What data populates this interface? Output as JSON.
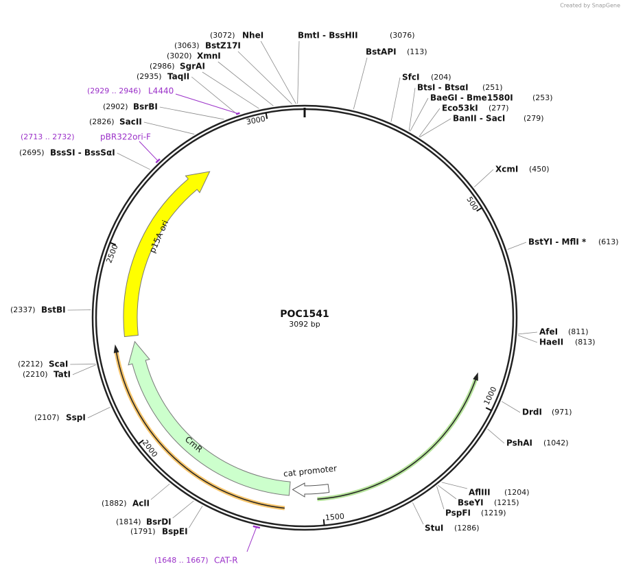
{
  "credit": "Created by SnapGene",
  "plasmid": {
    "name": "POC1541",
    "length": "3092 bp"
  },
  "sites": [
    {
      "name": "NheI",
      "position": "(3072)"
    },
    {
      "name": "BstZ17I",
      "position": "(3063)"
    },
    {
      "name": "XmnI",
      "position": "(3020)"
    },
    {
      "name": "SgrAI",
      "position": "(2986)"
    },
    {
      "name": "TaqII",
      "position": "(2935)"
    },
    {
      "name": "BsrBI",
      "position": "(2902)"
    },
    {
      "name": "SacII",
      "position": "(2826)"
    },
    {
      "name": "BssSI  - BssSαI",
      "position": "(2695)"
    },
    {
      "name": "BstBI",
      "position": "(2337)"
    },
    {
      "name": "ScaI",
      "position": "(2212)"
    },
    {
      "name": "TatI",
      "position": "(2210)"
    },
    {
      "name": "SspI",
      "position": "(2107)"
    },
    {
      "name": "AclI",
      "position": "(1882)"
    },
    {
      "name": "BsrDI",
      "position": "(1814)"
    },
    {
      "name": "BspEI",
      "position": "(1791)"
    },
    {
      "name": "BmtI  - BssHII",
      "position": "(3076)"
    },
    {
      "name": "BstAPI",
      "position": "(113)"
    },
    {
      "name": "SfcI",
      "position": "(204)"
    },
    {
      "name": "BtsI  - BtsαI",
      "position": "(251)"
    },
    {
      "name": "BaeGI  - Bme1580I",
      "position": "(253)"
    },
    {
      "name": "Eco53kI",
      "position": "(277)"
    },
    {
      "name": "BanII  - SacI",
      "position": "(279)"
    },
    {
      "name": "XcmI",
      "position": "(450)"
    },
    {
      "name": "BstYI  - MflI *",
      "position": "(613)"
    },
    {
      "name": "AfeI",
      "position": "(811)"
    },
    {
      "name": "HaeII",
      "position": "(813)"
    },
    {
      "name": "DrdI",
      "position": "(971)"
    },
    {
      "name": "PshAI",
      "position": "(1042)"
    },
    {
      "name": "AflIII",
      "position": "(1204)"
    },
    {
      "name": "BseYI",
      "position": "(1215)"
    },
    {
      "name": "PspFI",
      "position": "(1219)"
    },
    {
      "name": "StuI",
      "position": "(1286)"
    }
  ],
  "primers": [
    {
      "name": "L4440",
      "range": "(2929 .. 2946)"
    },
    {
      "name": "pBR322ori-F",
      "range": "(2713 .. 2732)"
    },
    {
      "name": "CAT-R",
      "range": "(1648 .. 1667)"
    }
  ],
  "features": [
    {
      "label": "p15A ori"
    },
    {
      "label": "CmR"
    },
    {
      "label": "cat promoter"
    }
  ],
  "ticks": [
    "500",
    "1000",
    "1500",
    "2000",
    "2500",
    "3000"
  ]
}
